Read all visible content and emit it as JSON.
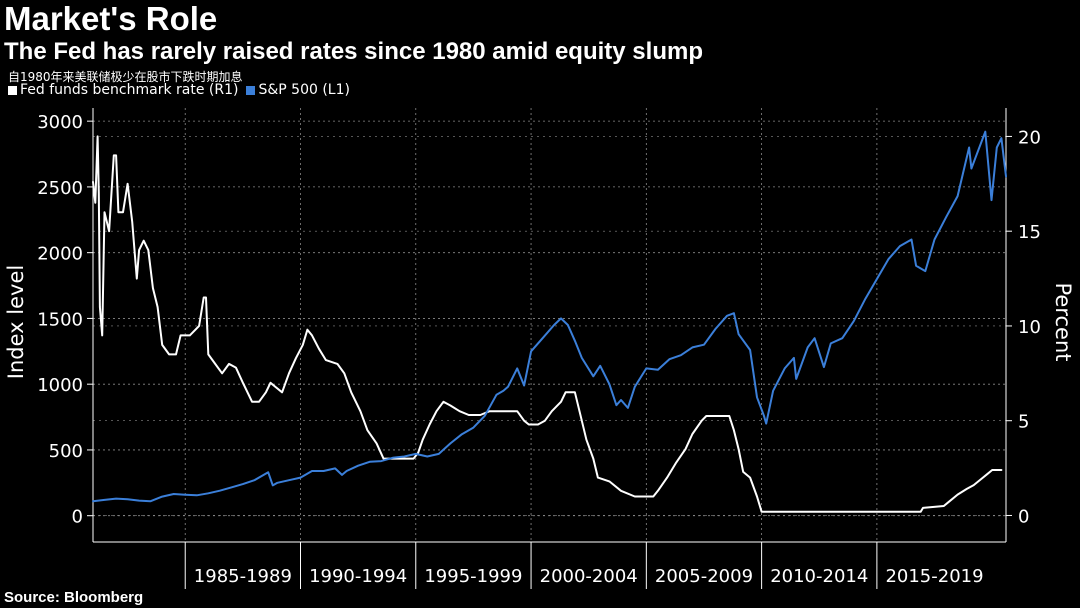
{
  "title": "Market's Role",
  "subtitle": "The Fed has rarely raised rates since 1980 amid equity slump",
  "note": "自1980年来美联储极少在股市下跌时期加息",
  "source": "Source: Bloomberg",
  "colors": {
    "background": "#000000",
    "fed": "#ffffff",
    "sp500": "#3b7fd9",
    "grid": "#8a8a8a"
  },
  "chart_data": {
    "type": "line",
    "x_range": [
      1980.0,
      2019.6
    ],
    "x_tick_labels": [
      "1985-1989",
      "1990-1994",
      "1995-1999",
      "2000-2004",
      "2005-2009",
      "2010-2014",
      "2015-2019"
    ],
    "x_ticks": [
      1984,
      1989,
      1994,
      1999,
      2004,
      2009,
      2014
    ],
    "x_label_periods": [
      [
        1984,
        1989
      ],
      [
        1989,
        1994
      ],
      [
        1994,
        1999
      ],
      [
        1999,
        2004
      ],
      [
        2004,
        2009
      ],
      [
        2009,
        2014
      ],
      [
        2014,
        2019
      ]
    ],
    "left_axis": {
      "label": "Index level",
      "ylim": [
        -200,
        3100
      ],
      "ticks": [
        0,
        500,
        1000,
        1500,
        2000,
        2500,
        3000
      ]
    },
    "right_axis": {
      "label": "Percent",
      "ylim": [
        -1.4,
        21.5
      ],
      "ticks": [
        0,
        5,
        10,
        15,
        20
      ]
    },
    "grid": true,
    "legend_position": "top-left",
    "series": [
      {
        "name": "Fed funds benchmark rate (R1)",
        "axis": "right",
        "color": "#ffffff",
        "points": [
          [
            1980.0,
            17.6
          ],
          [
            1980.1,
            16.5
          ],
          [
            1980.2,
            20.0
          ],
          [
            1980.25,
            17.0
          ],
          [
            1980.3,
            11.0
          ],
          [
            1980.4,
            9.5
          ],
          [
            1980.5,
            16.0
          ],
          [
            1980.6,
            15.5
          ],
          [
            1980.7,
            15.0
          ],
          [
            1980.9,
            19.0
          ],
          [
            1981.0,
            19.0
          ],
          [
            1981.1,
            16.0
          ],
          [
            1981.3,
            16.0
          ],
          [
            1981.5,
            17.5
          ],
          [
            1981.7,
            15.5
          ],
          [
            1981.9,
            12.5
          ],
          [
            1982.0,
            14.0
          ],
          [
            1982.2,
            14.5
          ],
          [
            1982.4,
            14.0
          ],
          [
            1982.6,
            12.0
          ],
          [
            1982.8,
            11.0
          ],
          [
            1983.0,
            9.0
          ],
          [
            1983.3,
            8.5
          ],
          [
            1983.6,
            8.5
          ],
          [
            1983.8,
            9.5
          ],
          [
            1984.2,
            9.5
          ],
          [
            1984.6,
            10.0
          ],
          [
            1984.8,
            11.5
          ],
          [
            1984.9,
            11.5
          ],
          [
            1985.0,
            8.5
          ],
          [
            1985.3,
            8.0
          ],
          [
            1985.6,
            7.5
          ],
          [
            1985.9,
            8.0
          ],
          [
            1986.2,
            7.8
          ],
          [
            1986.5,
            7.0
          ],
          [
            1986.9,
            6.0
          ],
          [
            1987.2,
            6.0
          ],
          [
            1987.5,
            6.5
          ],
          [
            1987.7,
            7.0
          ],
          [
            1987.9,
            6.8
          ],
          [
            1988.2,
            6.5
          ],
          [
            1988.5,
            7.5
          ],
          [
            1988.8,
            8.3
          ],
          [
            1989.1,
            9.0
          ],
          [
            1989.3,
            9.8
          ],
          [
            1989.5,
            9.5
          ],
          [
            1989.8,
            8.8
          ],
          [
            1990.1,
            8.2
          ],
          [
            1990.6,
            8.0
          ],
          [
            1990.9,
            7.5
          ],
          [
            1991.2,
            6.5
          ],
          [
            1991.6,
            5.5
          ],
          [
            1991.9,
            4.5
          ],
          [
            1992.3,
            3.8
          ],
          [
            1992.6,
            3.0
          ],
          [
            1993.2,
            3.0
          ],
          [
            1993.9,
            3.0
          ],
          [
            1994.1,
            3.3
          ],
          [
            1994.3,
            4.0
          ],
          [
            1994.6,
            4.8
          ],
          [
            1994.9,
            5.5
          ],
          [
            1995.2,
            6.0
          ],
          [
            1995.5,
            5.8
          ],
          [
            1995.9,
            5.5
          ],
          [
            1996.3,
            5.3
          ],
          [
            1996.8,
            5.3
          ],
          [
            1997.2,
            5.5
          ],
          [
            1997.8,
            5.5
          ],
          [
            1998.4,
            5.5
          ],
          [
            1998.7,
            5.0
          ],
          [
            1998.9,
            4.8
          ],
          [
            1999.3,
            4.8
          ],
          [
            1999.6,
            5.0
          ],
          [
            1999.9,
            5.5
          ],
          [
            2000.3,
            6.0
          ],
          [
            2000.5,
            6.5
          ],
          [
            2000.9,
            6.5
          ],
          [
            2001.1,
            5.5
          ],
          [
            2001.4,
            4.0
          ],
          [
            2001.7,
            3.0
          ],
          [
            2001.9,
            2.0
          ],
          [
            2002.4,
            1.8
          ],
          [
            2002.9,
            1.3
          ],
          [
            2003.5,
            1.0
          ],
          [
            2004.3,
            1.0
          ],
          [
            2004.5,
            1.3
          ],
          [
            2004.9,
            2.0
          ],
          [
            2005.3,
            2.8
          ],
          [
            2005.7,
            3.5
          ],
          [
            2006.0,
            4.3
          ],
          [
            2006.4,
            5.0
          ],
          [
            2006.6,
            5.25
          ],
          [
            2007.6,
            5.25
          ],
          [
            2007.8,
            4.5
          ],
          [
            2008.0,
            3.5
          ],
          [
            2008.2,
            2.3
          ],
          [
            2008.5,
            2.0
          ],
          [
            2008.8,
            1.0
          ],
          [
            2009.0,
            0.2
          ],
          [
            2015.9,
            0.2
          ],
          [
            2016.0,
            0.4
          ],
          [
            2016.9,
            0.5
          ],
          [
            2017.1,
            0.7
          ],
          [
            2017.5,
            1.1
          ],
          [
            2017.9,
            1.4
          ],
          [
            2018.2,
            1.6
          ],
          [
            2018.5,
            1.9
          ],
          [
            2018.8,
            2.2
          ],
          [
            2019.0,
            2.4
          ],
          [
            2019.4,
            2.4
          ]
        ]
      },
      {
        "name": "S&P 500 (L1)",
        "axis": "left",
        "color": "#3b7fd9",
        "points": [
          [
            1980.0,
            110
          ],
          [
            1980.5,
            120
          ],
          [
            1981.0,
            130
          ],
          [
            1981.5,
            125
          ],
          [
            1982.0,
            115
          ],
          [
            1982.5,
            110
          ],
          [
            1983.0,
            145
          ],
          [
            1983.5,
            165
          ],
          [
            1984.0,
            160
          ],
          [
            1984.5,
            155
          ],
          [
            1985.0,
            170
          ],
          [
            1985.5,
            190
          ],
          [
            1986.0,
            215
          ],
          [
            1986.5,
            240
          ],
          [
            1987.0,
            270
          ],
          [
            1987.6,
            330
          ],
          [
            1987.8,
            230
          ],
          [
            1988.0,
            250
          ],
          [
            1988.5,
            270
          ],
          [
            1989.0,
            290
          ],
          [
            1989.5,
            340
          ],
          [
            1990.0,
            340
          ],
          [
            1990.5,
            360
          ],
          [
            1990.8,
            310
          ],
          [
            1991.0,
            340
          ],
          [
            1991.5,
            380
          ],
          [
            1992.0,
            410
          ],
          [
            1992.5,
            415
          ],
          [
            1993.0,
            440
          ],
          [
            1993.5,
            450
          ],
          [
            1994.0,
            470
          ],
          [
            1994.5,
            450
          ],
          [
            1995.0,
            470
          ],
          [
            1995.5,
            550
          ],
          [
            1996.0,
            620
          ],
          [
            1996.5,
            670
          ],
          [
            1997.0,
            760
          ],
          [
            1997.5,
            920
          ],
          [
            1997.8,
            950
          ],
          [
            1998.0,
            980
          ],
          [
            1998.4,
            1120
          ],
          [
            1998.7,
            990
          ],
          [
            1999.0,
            1250
          ],
          [
            1999.5,
            1350
          ],
          [
            2000.0,
            1450
          ],
          [
            2000.3,
            1500
          ],
          [
            2000.6,
            1450
          ],
          [
            2000.9,
            1330
          ],
          [
            2001.2,
            1200
          ],
          [
            2001.7,
            1060
          ],
          [
            2002.0,
            1140
          ],
          [
            2002.4,
            1000
          ],
          [
            2002.7,
            840
          ],
          [
            2002.9,
            880
          ],
          [
            2003.2,
            820
          ],
          [
            2003.5,
            980
          ],
          [
            2004.0,
            1120
          ],
          [
            2004.5,
            1110
          ],
          [
            2005.0,
            1190
          ],
          [
            2005.5,
            1220
          ],
          [
            2006.0,
            1280
          ],
          [
            2006.5,
            1300
          ],
          [
            2007.0,
            1420
          ],
          [
            2007.5,
            1520
          ],
          [
            2007.8,
            1540
          ],
          [
            2008.0,
            1380
          ],
          [
            2008.5,
            1260
          ],
          [
            2008.8,
            900
          ],
          [
            2009.1,
            760
          ],
          [
            2009.2,
            700
          ],
          [
            2009.5,
            950
          ],
          [
            2010.0,
            1120
          ],
          [
            2010.4,
            1200
          ],
          [
            2010.5,
            1040
          ],
          [
            2011.0,
            1280
          ],
          [
            2011.3,
            1350
          ],
          [
            2011.7,
            1130
          ],
          [
            2012.0,
            1310
          ],
          [
            2012.5,
            1350
          ],
          [
            2013.0,
            1480
          ],
          [
            2013.5,
            1650
          ],
          [
            2014.0,
            1800
          ],
          [
            2014.5,
            1950
          ],
          [
            2015.0,
            2050
          ],
          [
            2015.5,
            2100
          ],
          [
            2015.7,
            1900
          ],
          [
            2016.1,
            1860
          ],
          [
            2016.5,
            2100
          ],
          [
            2017.0,
            2270
          ],
          [
            2017.5,
            2430
          ],
          [
            2018.0,
            2800
          ],
          [
            2018.1,
            2640
          ],
          [
            2018.7,
            2920
          ],
          [
            2018.97,
            2400
          ],
          [
            2019.2,
            2800
          ],
          [
            2019.4,
            2870
          ],
          [
            2019.6,
            2580
          ]
        ]
      }
    ]
  }
}
